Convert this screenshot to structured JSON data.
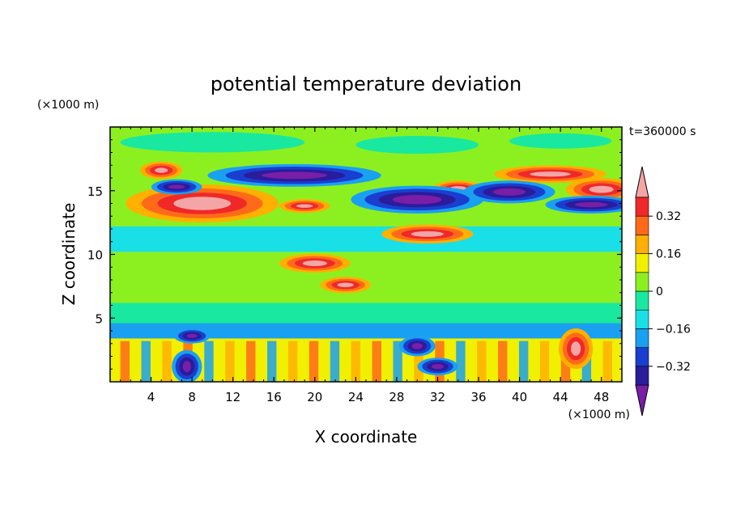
{
  "chart_data": {
    "type": "heatmap",
    "title": "potential temperature deviation",
    "xlabel": "X coordinate",
    "ylabel": "Z coordinate",
    "x_unit": "(×1000 m)",
    "y_unit": "(×1000 m)",
    "time_label": "t=360000 s",
    "xlim": [
      0,
      50
    ],
    "ylim": [
      0,
      20
    ],
    "x_ticks": [
      4,
      8,
      12,
      16,
      20,
      24,
      28,
      32,
      36,
      40,
      44,
      48
    ],
    "y_ticks": [
      5,
      10,
      15
    ],
    "colorbar": {
      "levels": [
        -0.4,
        -0.32,
        -0.24,
        -0.16,
        -0.08,
        0,
        0.08,
        0.16,
        0.24,
        0.32,
        0.4
      ],
      "tick_labels": [
        "0.32",
        "0.16",
        "0",
        "−0.16",
        "−0.32"
      ],
      "tick_values": [
        0.32,
        0.16,
        0,
        -0.16,
        -0.32
      ],
      "colors": [
        "#7a1ea8",
        "#2a1c9a",
        "#1a3ed0",
        "#1aa0f0",
        "#19e0e6",
        "#19e8a0",
        "#8cf020",
        "#f0f000",
        "#ffb000",
        "#ff6a1a",
        "#f02828",
        "#f4a6a6"
      ]
    },
    "features": [
      {
        "kind": "warm",
        "x": 9,
        "z": 14.0,
        "rx": 7,
        "rz": 1.3
      },
      {
        "kind": "warm",
        "x": 5,
        "z": 16.6,
        "rx": 1.6,
        "rz": 0.5
      },
      {
        "kind": "warm",
        "x": 43,
        "z": 16.3,
        "rx": 5,
        "rz": 0.5
      },
      {
        "kind": "warm",
        "x": 48,
        "z": 15.1,
        "rx": 3,
        "rz": 0.7
      },
      {
        "kind": "warm",
        "x": 20,
        "z": 9.3,
        "rx": 3,
        "rz": 0.55
      },
      {
        "kind": "warm",
        "x": 23,
        "z": 7.6,
        "rx": 2,
        "rz": 0.45
      },
      {
        "kind": "warm",
        "x": 31,
        "z": 11.6,
        "rx": 4,
        "rz": 0.55
      },
      {
        "kind": "warm",
        "x": 34,
        "z": 15.2,
        "rx": 2,
        "rz": 0.4
      },
      {
        "kind": "warm",
        "x": 19,
        "z": 13.8,
        "rx": 2,
        "rz": 0.35
      },
      {
        "kind": "warm",
        "x": 45.5,
        "z": 2.6,
        "rx": 1.2,
        "rz": 1.4
      },
      {
        "kind": "cold",
        "x": 18,
        "z": 16.2,
        "rx": 8,
        "rz": 0.7
      },
      {
        "kind": "cold",
        "x": 30,
        "z": 14.3,
        "rx": 6,
        "rz": 0.9
      },
      {
        "kind": "cold",
        "x": 39,
        "z": 14.9,
        "rx": 4,
        "rz": 0.7
      },
      {
        "kind": "cold",
        "x": 47,
        "z": 13.9,
        "rx": 4,
        "rz": 0.5
      },
      {
        "kind": "cold",
        "x": 6.5,
        "z": 15.3,
        "rx": 2,
        "rz": 0.4
      },
      {
        "kind": "cold",
        "x": 8,
        "z": 3.6,
        "rx": 1.3,
        "rz": 0.4
      },
      {
        "kind": "cold",
        "x": 30,
        "z": 2.8,
        "rx": 1.3,
        "rz": 0.6
      },
      {
        "kind": "cold",
        "x": 32,
        "z": 1.2,
        "rx": 1.5,
        "rz": 0.5
      },
      {
        "kind": "cold",
        "x": 7.5,
        "z": 1.2,
        "rx": 1,
        "rz": 1.1
      }
    ]
  }
}
